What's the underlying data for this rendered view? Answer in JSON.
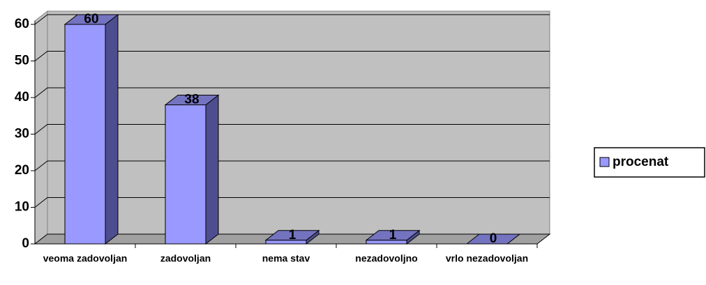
{
  "chart_data": {
    "type": "bar",
    "categories": [
      "veoma zadovoljan",
      "zadovoljan",
      "nema stav",
      "nezadovoljno",
      "vrlo nezadovoljan"
    ],
    "series": [
      {
        "name": "procenat",
        "color": "#9999ff",
        "values": [
          60,
          38,
          1,
          1,
          0
        ]
      }
    ],
    "ylim": [
      0,
      60
    ],
    "yticks": [
      0,
      10,
      20,
      30,
      40,
      50,
      60
    ],
    "grid": true,
    "legend": "right"
  }
}
